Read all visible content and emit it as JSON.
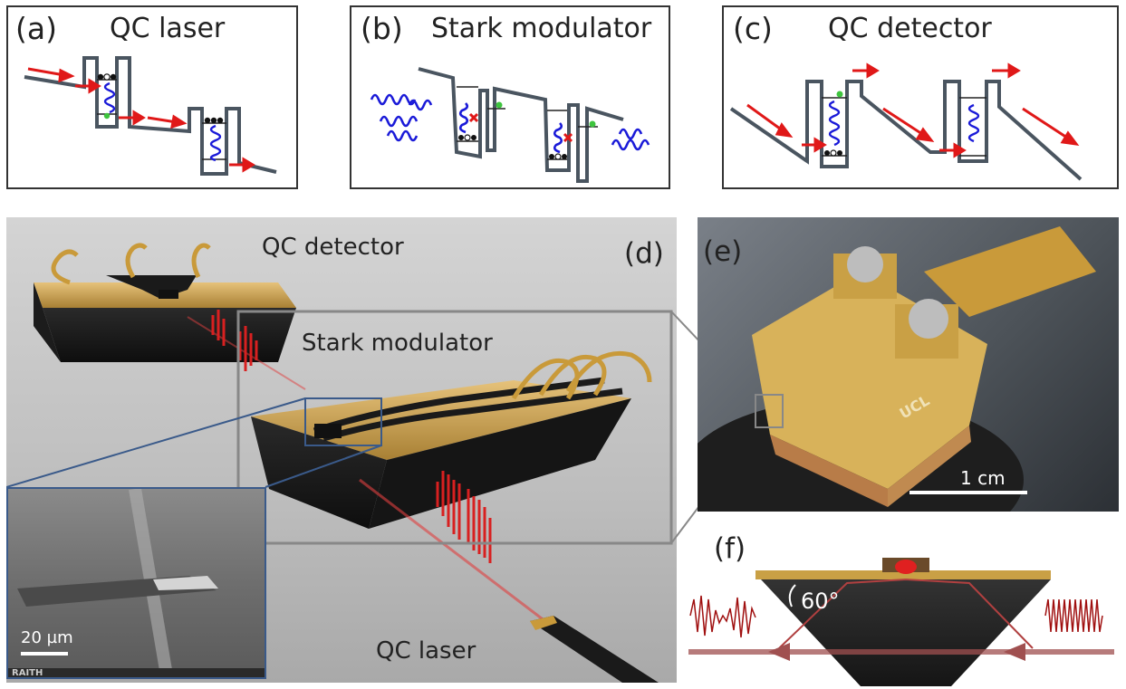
{
  "panels": {
    "a": {
      "letter": "(a)",
      "title": "QC laser"
    },
    "b": {
      "letter": "(b)",
      "title": "Stark modulator"
    },
    "c": {
      "letter": "(c)",
      "title": "QC detector"
    },
    "d": {
      "letter": "(d)",
      "detector_label": "QC detector",
      "modulator_label": "Stark modulator",
      "laser_label": "QC laser"
    },
    "e": {
      "letter": "(e)",
      "scale_label": "1 cm",
      "logo_text": "UCL"
    },
    "f": {
      "letter": "(f)",
      "angle_label": "60°"
    },
    "sem": {
      "scale_label": "20 µm",
      "brand": "RAITH"
    }
  },
  "colors": {
    "band": "#4a5560",
    "arrow": "#e01818",
    "wave": "#1a1ad8",
    "electron_green": "#3ec43e",
    "gold": "#c8a040",
    "beam": "#a04040"
  }
}
